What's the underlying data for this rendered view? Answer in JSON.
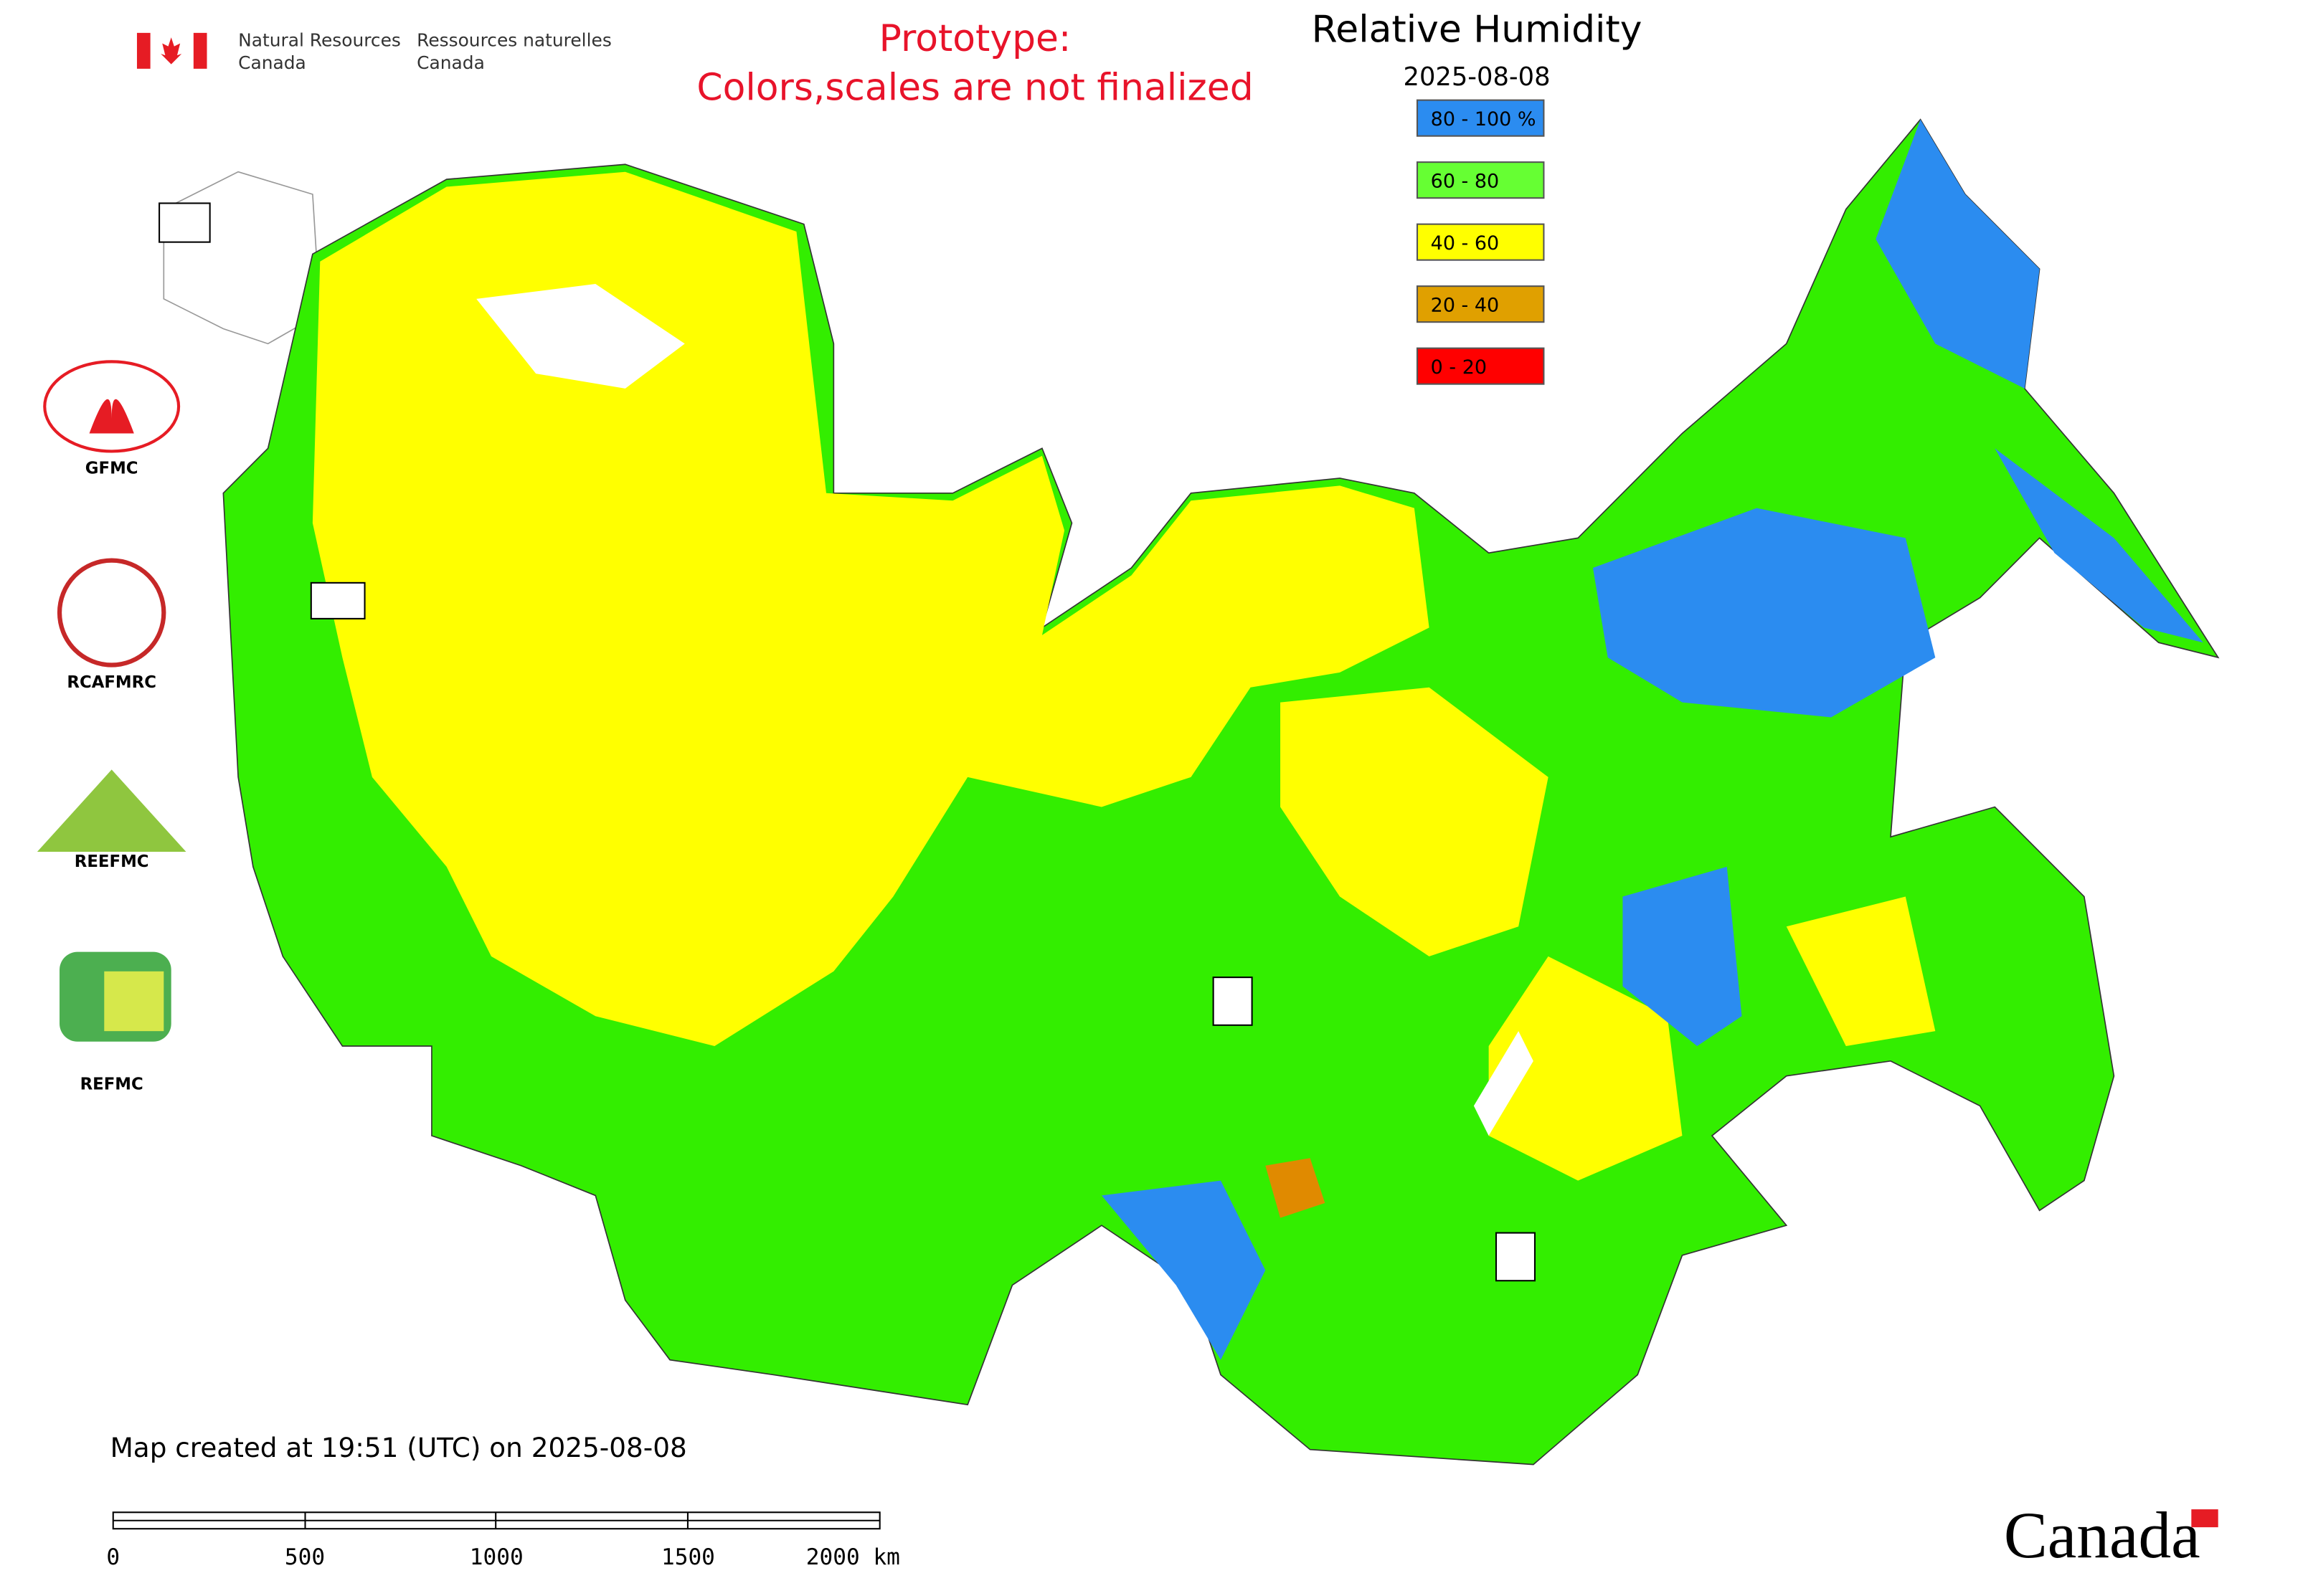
{
  "header": {
    "agency_en_1": "Natural Resources",
    "agency_en_2": "Canada",
    "agency_fr_1": "Ressources naturelles",
    "agency_fr_2": "Canada"
  },
  "notice": {
    "line1": "Prototype:",
    "line2": "Colors,scales are not finalized"
  },
  "title": "Relative Humidity",
  "date": "2025-08-08",
  "legend": [
    {
      "label": "80 - 100 %",
      "color": "#2b8cf0"
    },
    {
      "label": "60 - 80",
      "color": "#66ff33"
    },
    {
      "label": "40 - 60",
      "color": "#ffff00"
    },
    {
      "label": "20 - 40",
      "color": "#e0a000"
    },
    {
      "label": "0 - 20",
      "color": "#ff0000"
    }
  ],
  "logos": [
    "GFMC",
    "RCAFMRC",
    "REEFMC",
    "REFMC"
  ],
  "footer": {
    "created": "Map created at 19:51 (UTC) on 2025-08-08",
    "wordmark": "Canada"
  },
  "scale_bar": [
    "0",
    "500",
    "1000",
    "1500",
    "2000 km"
  ]
}
